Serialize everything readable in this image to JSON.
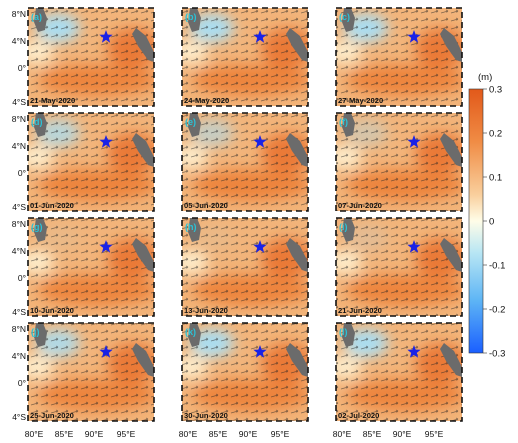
{
  "panels": [
    {
      "letter": "a",
      "date": "21-May-2020"
    },
    {
      "letter": "b",
      "date": "24-May-2020"
    },
    {
      "letter": "c",
      "date": "27-May-2020"
    },
    {
      "letter": "d",
      "date": "01-Jun-2020"
    },
    {
      "letter": "e",
      "date": "05-Jun-2020"
    },
    {
      "letter": "f",
      "date": "07-Jun-2020"
    },
    {
      "letter": "g",
      "date": "10-Jun-2020"
    },
    {
      "letter": "h",
      "date": "13-Jun-2020"
    },
    {
      "letter": "i",
      "date": "21-Jun-2020"
    },
    {
      "letter": "j",
      "date": "25-Jun-2020"
    },
    {
      "letter": "k",
      "date": "30-Jun-2020"
    },
    {
      "letter": "l",
      "date": "02-Jul-2020"
    }
  ],
  "lat_ticks": [
    "8°N",
    "4°N",
    "0°",
    "4°S"
  ],
  "lon_ticks": [
    "80°E",
    "85°E",
    "90°E",
    "95°E"
  ],
  "colorbar": {
    "unit": "(m)",
    "ticks": [
      "0.3",
      "0.2",
      "0.1",
      "0",
      "-0.1",
      "-0.2",
      "-0.3"
    ],
    "colors": {
      "high": "#e8641a",
      "mid": "#fffde8",
      "low": "#1a5fff"
    }
  },
  "marker": {
    "symbol": "star",
    "color": "#1a22e6"
  }
}
